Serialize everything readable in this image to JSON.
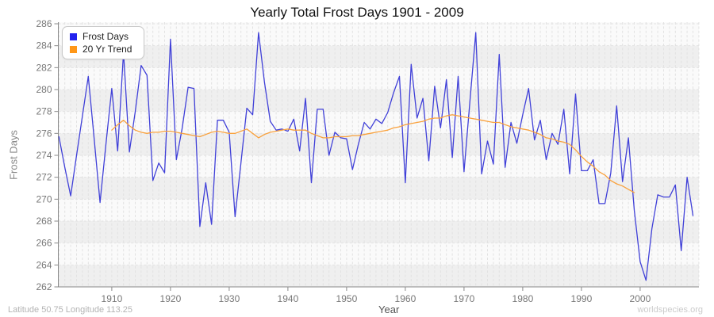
{
  "title": "Yearly Total Frost Days 1901 - 2009",
  "y_axis": {
    "label": "Frost Days"
  },
  "x_axis": {
    "label": "Year"
  },
  "legend": {
    "items": [
      {
        "label": "Frost Days",
        "color": "#2222ee"
      },
      {
        "label": "20 Yr Trend",
        "color": "#ff9718"
      }
    ]
  },
  "footer": {
    "left": "Latitude 50.75 Longitude 113.25",
    "right": "worldspecies.org"
  },
  "colors": {
    "frost_line": "#4040d8",
    "trend_line": "#f9a13c",
    "band_light": "#fafafa",
    "band_dark": "#efefef",
    "grid": "#e2e2e2",
    "axis": "#888888",
    "tick_text": "#777777"
  },
  "chart_data": {
    "type": "line",
    "title": "Yearly Total Frost Days 1901 - 2009",
    "xlabel": "Year",
    "ylabel": "Frost Days",
    "xlim": [
      1901,
      2009
    ],
    "ylim": [
      262,
      286
    ],
    "y_ticks": [
      262,
      264,
      266,
      268,
      270,
      272,
      274,
      276,
      278,
      280,
      282,
      284,
      286
    ],
    "x_ticks": [
      1910,
      1920,
      1930,
      1940,
      1950,
      1960,
      1970,
      1980,
      1990,
      2000
    ],
    "grid": "on",
    "legend_position": "top-left",
    "series": [
      {
        "name": "Frost Days",
        "start_year": 1901,
        "values": [
          275.7,
          272.9,
          270.3,
          274.0,
          277.6,
          281.2,
          275.5,
          269.7,
          275.0,
          280.1,
          274.4,
          283.4,
          274.3,
          278.0,
          282.2,
          281.3,
          271.7,
          273.3,
          272.4,
          284.6,
          273.6,
          276.5,
          280.2,
          280.1,
          267.5,
          271.5,
          267.7,
          277.2,
          277.2,
          276.1,
          268.4,
          273.3,
          278.3,
          277.7,
          285.2,
          280.7,
          277.1,
          276.3,
          276.4,
          276.2,
          277.3,
          274.4,
          279.2,
          271.5,
          278.2,
          278.2,
          274.0,
          276.1,
          275.6,
          275.5,
          272.7,
          275.0,
          277.0,
          276.4,
          277.3,
          276.9,
          277.9,
          279.7,
          281.2,
          271.5,
          282.3,
          277.4,
          279.2,
          273.5,
          280.3,
          276.5,
          280.9,
          273.8,
          281.2,
          272.5,
          278.9,
          285.2,
          272.3,
          275.3,
          273.2,
          283.2,
          272.9,
          277.0,
          275.1,
          277.7,
          280.1,
          275.4,
          277.2,
          273.6,
          276.0,
          275.0,
          278.2,
          272.3,
          279.6,
          272.6,
          272.6,
          273.6,
          269.6,
          269.6,
          272.4,
          278.5,
          271.6,
          275.6,
          269.0,
          264.3,
          262.6,
          267.3,
          270.4,
          270.2,
          270.2,
          271.3,
          265.3,
          272.0,
          268.5
        ]
      },
      {
        "name": "20 Yr Trend",
        "start_year": 1910,
        "values": [
          276.3,
          276.8,
          277.2,
          276.7,
          276.3,
          276.1,
          276.0,
          276.1,
          276.1,
          276.2,
          276.2,
          276.1,
          276.0,
          275.9,
          275.8,
          275.7,
          275.9,
          276.1,
          276.2,
          276.1,
          276.0,
          276.0,
          276.2,
          276.4,
          276.0,
          275.6,
          275.9,
          276.1,
          276.2,
          276.3,
          276.4,
          276.3,
          276.3,
          276.3,
          276.0,
          275.8,
          275.6,
          275.6,
          275.7,
          275.7,
          275.7,
          275.8,
          275.8,
          275.9,
          276.0,
          276.1,
          276.2,
          276.3,
          276.5,
          276.6,
          276.8,
          276.9,
          277.0,
          277.1,
          277.3,
          277.4,
          277.4,
          277.6,
          277.7,
          277.6,
          277.5,
          277.4,
          277.3,
          277.2,
          277.1,
          277.0,
          277.0,
          276.8,
          276.6,
          276.5,
          276.4,
          276.3,
          276.1,
          275.9,
          275.6,
          275.5,
          275.3,
          275.2,
          275.0,
          274.5,
          273.9,
          273.4,
          273.0,
          272.5,
          272.2,
          271.7,
          271.4,
          271.2,
          270.9,
          270.6
        ]
      }
    ]
  }
}
